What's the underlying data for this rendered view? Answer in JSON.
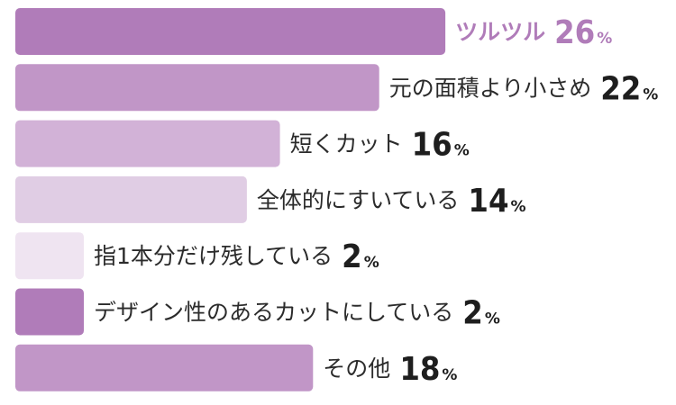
{
  "chart_data": {
    "type": "bar",
    "orientation": "horizontal",
    "categories": [
      "ツルツル",
      "元の面積より小さめ",
      "短くカット",
      "全体的にすいている",
      "指1本分だけ残している",
      "デザイン性のあるカットにしている",
      "その他"
    ],
    "values": [
      26,
      22,
      16,
      14,
      2,
      2,
      18
    ],
    "unit": "%",
    "colors": [
      "#b07cb9",
      "#c196c7",
      "#d2b2d7",
      "#e0cde4",
      "#efe4f1",
      "#b07cb9",
      "#c196c7"
    ],
    "highlight_index": 0,
    "grid": false,
    "legend": "none"
  }
}
